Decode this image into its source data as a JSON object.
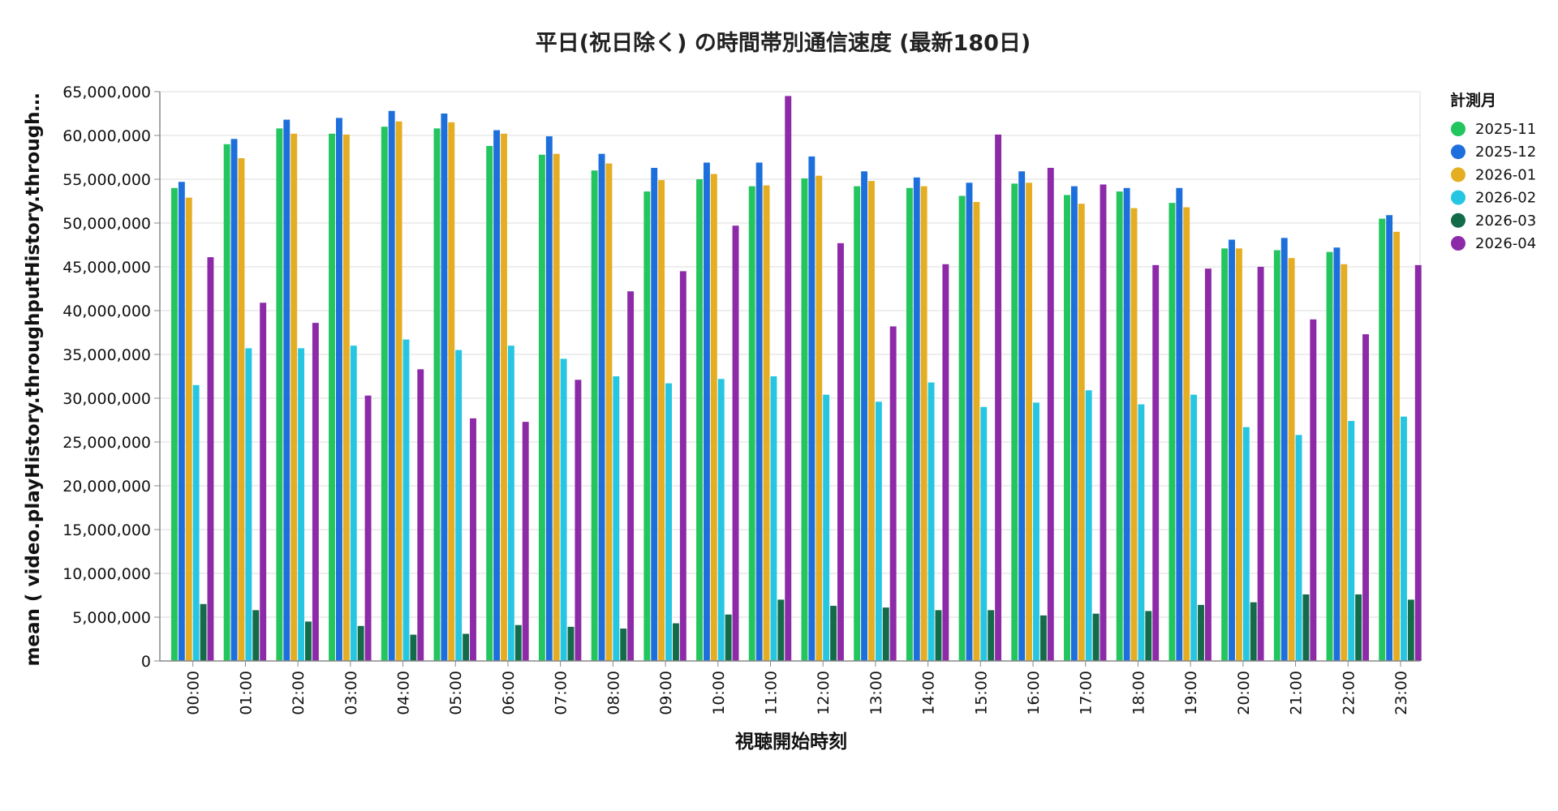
{
  "chart_data": {
    "type": "bar",
    "title": "平日(祝日除く) の時間帯別通信速度 (最新180日)",
    "xlabel": "視聴開始時刻",
    "ylabel": "mean ( video.playHistory.throughputHistory.through…",
    "ylim": [
      0,
      65000000
    ],
    "yticks": [
      0,
      5000000,
      10000000,
      15000000,
      20000000,
      25000000,
      30000000,
      35000000,
      40000000,
      45000000,
      50000000,
      55000000,
      60000000,
      65000000
    ],
    "ytick_labels": [
      "0",
      "5,000,000",
      "10,000,000",
      "15,000,000",
      "20,000,000",
      "25,000,000",
      "30,000,000",
      "35,000,000",
      "40,000,000",
      "45,000,000",
      "50,000,000",
      "55,000,000",
      "60,000,000",
      "65,000,000"
    ],
    "grid": true,
    "legend_position": "right",
    "legend_title": "計測月",
    "categories": [
      "00:00",
      "01:00",
      "02:00",
      "03:00",
      "04:00",
      "05:00",
      "06:00",
      "07:00",
      "08:00",
      "09:00",
      "10:00",
      "11:00",
      "12:00",
      "13:00",
      "14:00",
      "15:00",
      "16:00",
      "17:00",
      "18:00",
      "19:00",
      "20:00",
      "21:00",
      "22:00",
      "23:00"
    ],
    "series": [
      {
        "name": "2025-11",
        "color": "#22c55e",
        "values": [
          54000000,
          59000000,
          60800000,
          60200000,
          61000000,
          60800000,
          58800000,
          57800000,
          56000000,
          53600000,
          55000000,
          54200000,
          55100000,
          54200000,
          54000000,
          53100000,
          54500000,
          53200000,
          53600000,
          52300000,
          47100000,
          46900000,
          46700000,
          50500000
        ]
      },
      {
        "name": "2025-12",
        "color": "#1d6fdc",
        "values": [
          54700000,
          59600000,
          61800000,
          62000000,
          62800000,
          62500000,
          60600000,
          59900000,
          57900000,
          56300000,
          56900000,
          56900000,
          57600000,
          55900000,
          55200000,
          54600000,
          55900000,
          54200000,
          54000000,
          54000000,
          48100000,
          48300000,
          47200000,
          50900000
        ]
      },
      {
        "name": "2026-01",
        "color": "#e5ad22",
        "values": [
          52900000,
          57400000,
          60200000,
          60100000,
          61600000,
          61500000,
          60200000,
          57900000,
          56800000,
          54900000,
          55600000,
          54300000,
          55400000,
          54800000,
          54200000,
          52400000,
          54600000,
          52200000,
          51700000,
          51800000,
          47100000,
          46000000,
          45300000,
          49000000
        ]
      },
      {
        "name": "2026-02",
        "color": "#26c6e2",
        "values": [
          31500000,
          35700000,
          35700000,
          36000000,
          36700000,
          35500000,
          36000000,
          34500000,
          32500000,
          31700000,
          32200000,
          32500000,
          30400000,
          29600000,
          31800000,
          29000000,
          29500000,
          30900000,
          29300000,
          30400000,
          26700000,
          25800000,
          27400000,
          27900000
        ]
      },
      {
        "name": "2026-03",
        "color": "#146b4a",
        "values": [
          6500000,
          5800000,
          4500000,
          4000000,
          3000000,
          3100000,
          4100000,
          3900000,
          3700000,
          4300000,
          5300000,
          7000000,
          6300000,
          6100000,
          5800000,
          5800000,
          5200000,
          5400000,
          5700000,
          6400000,
          6700000,
          7600000,
          7600000,
          7000000
        ]
      },
      {
        "name": "2026-04",
        "color": "#8c2aa8",
        "values": [
          46100000,
          40900000,
          38600000,
          30300000,
          33300000,
          27700000,
          27300000,
          32100000,
          42200000,
          44500000,
          49700000,
          64500000,
          47700000,
          38200000,
          45300000,
          60100000,
          56300000,
          54400000,
          45200000,
          44800000,
          45000000,
          39000000,
          37300000,
          45200000
        ]
      }
    ]
  }
}
